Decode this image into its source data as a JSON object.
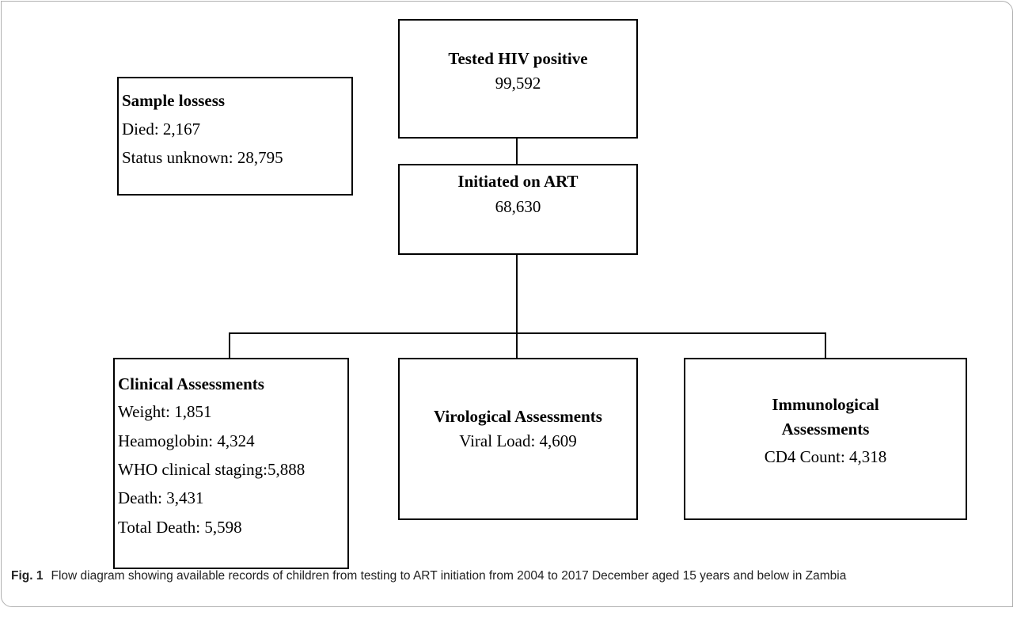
{
  "nodes": [
    {
      "title": "Sample lossess",
      "lines": [
        "Died: 2,167",
        "Status unknown: 28,795"
      ]
    },
    {
      "title": "Tested HIV positive",
      "lines": [
        "99,592"
      ]
    },
    {
      "title": "Initiated on ART",
      "lines": [
        "68,630"
      ]
    },
    {
      "title": "Clinical Assessments",
      "lines": [
        "Weight: 1,851",
        "Heamoglobin: 4,324",
        "WHO clinical staging:5,888",
        "Death: 3,431",
        "Total Death: 5,598"
      ]
    },
    {
      "title": "Virological Assessments",
      "lines": [
        "Viral Load: 4,609"
      ]
    },
    {
      "title": "Immunological Assessments",
      "lines": [
        "CD4 Count: 4,318"
      ]
    }
  ],
  "caption": {
    "label": "Fig. 1",
    "text": "Flow diagram showing available records of children from testing to ART initiation from 2004 to 2017 December aged 15 years and below in Zambia"
  }
}
